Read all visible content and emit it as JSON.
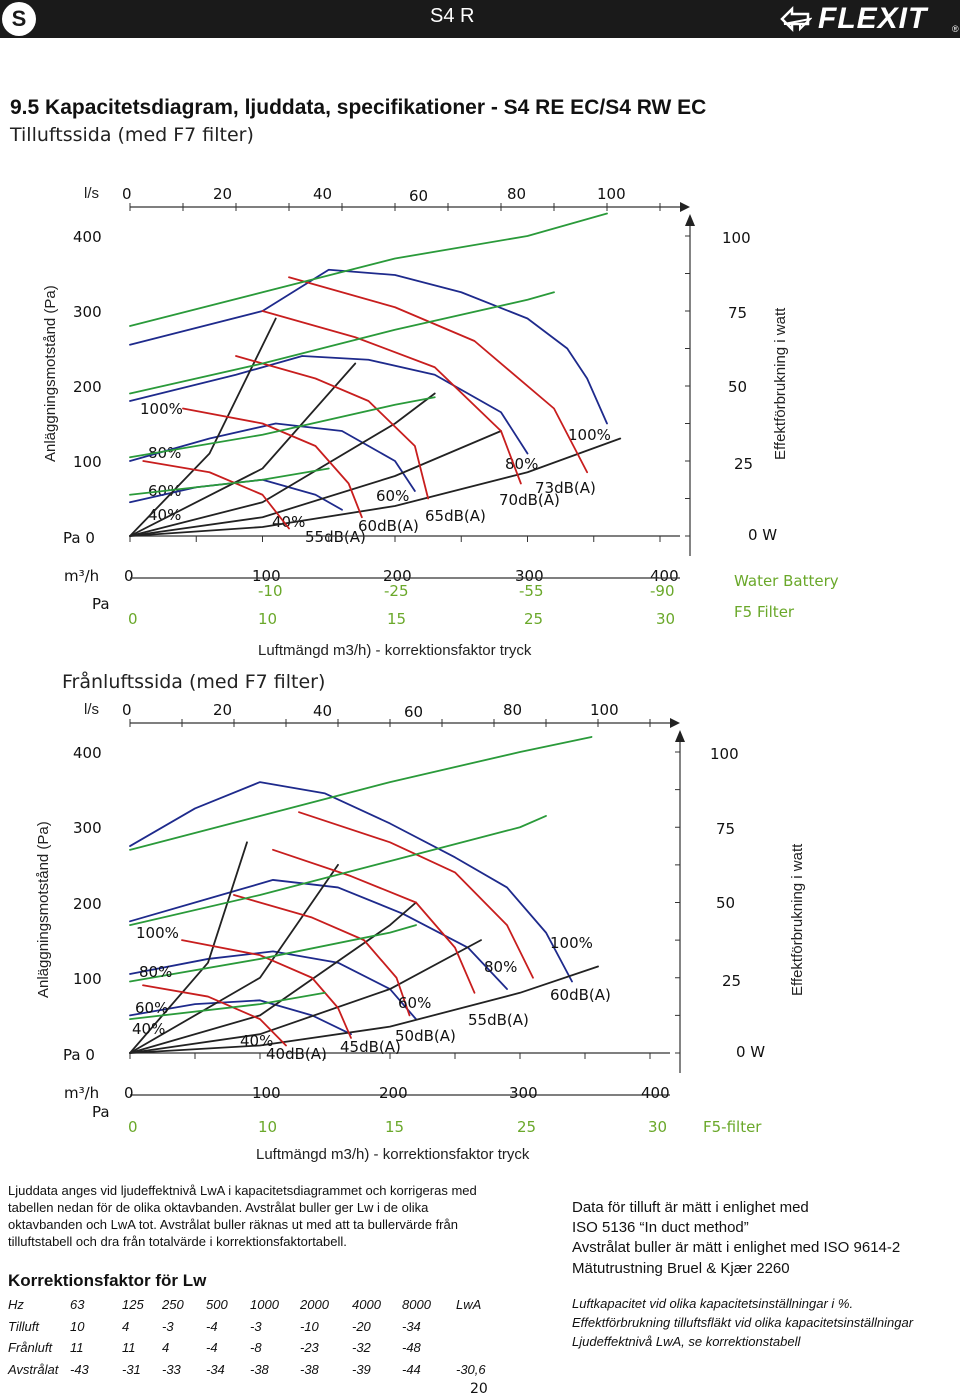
{
  "header": {
    "lang_badge": "S",
    "doc_code": "S4 R",
    "brand": "FLEXIT",
    "reg": "®",
    "icon": "flexit-arrow-logo-icon"
  },
  "title": "9.5  Kapacitetsdiagram, ljuddata, specifikationer - S4 RE EC/S4 RW EC",
  "supply": {
    "subtitle": "Tilluftssida (med F7 filter)",
    "ls_label": "l/s",
    "ls_ticks": [
      "0",
      "20",
      "40",
      "60",
      "80",
      "100"
    ],
    "pa_ticks_left": [
      "400",
      "300",
      "200",
      "100",
      "Pa  0"
    ],
    "y_axis_label": "Anläggningsmotstånd (Pa)",
    "w_ticks": [
      "100",
      "75",
      "50",
      "25",
      "0   W"
    ],
    "w_axis_label": "Effektförbrukning i watt",
    "m3h_label": "m³/h",
    "m3h_ticks": [
      "0",
      "100",
      "200",
      "300",
      "400"
    ],
    "water_corr": [
      "-10",
      "-25",
      "-55",
      "-90"
    ],
    "pa_label": "Pa",
    "f5_ticks": [
      "0",
      "10",
      "15",
      "25",
      "30"
    ],
    "legend_water": "Water Battery",
    "legend_f5": "F5 Filter",
    "x_caption": "Luftmängd m3/h) - korrektionsfaktor tryck",
    "fan_labels_left": [
      "100%",
      "80%",
      "60%",
      "40%"
    ],
    "fan_labels_mid": [
      "60%",
      "40%"
    ],
    "fan_labels_right": [
      "100%",
      "80%"
    ],
    "db_labels": [
      "73dB(A)",
      "70dB(A)",
      "65dB(A)",
      "60dB(A)",
      "55dB(A)"
    ]
  },
  "extract": {
    "subtitle": "Frånluftssida (med F7 filter)",
    "ls_label": "l/s",
    "ls_ticks": [
      "0",
      "20",
      "40",
      "60",
      "80",
      "100"
    ],
    "pa_ticks_left": [
      "400",
      "300",
      "200",
      "100",
      "Pa  0"
    ],
    "y_axis_label": "Anläggningsmotstånd (Pa)",
    "w_ticks": [
      "100",
      "75",
      "50",
      "25",
      "0   W"
    ],
    "w_axis_label": "Effektförbrukning i watt",
    "m3h_label": "m³/h",
    "m3h_ticks": [
      "0",
      "100",
      "200",
      "300",
      "400"
    ],
    "pa_label": "Pa",
    "f5_ticks": [
      "0",
      "10",
      "15",
      "25",
      "30"
    ],
    "legend_f5": "F5-filter",
    "x_caption": "Luftmängd m3/h) - korrektionsfaktor tryck",
    "fan_labels_left": [
      "100%",
      "80%",
      "60%",
      "40%"
    ],
    "fan_labels_mid": [
      "60%",
      "40%"
    ],
    "fan_labels_right": [
      "100%",
      "80%"
    ],
    "db_labels": [
      "60dB(A)",
      "55dB(A)",
      "50dB(A)",
      "45dB(A)",
      "40dB(A)"
    ]
  },
  "sound_text": "Ljuddata anges vid ljudeffektnivå LwA i kapacitetsdiagrammet och korrigeras med tabellen nedan för de olika oktavbanden. Avstrålat buller ger Lw i de olika oktavbanden och LwA tot. Avstrålat buller räknas ut med att ta bullervärde från tilluftstabell och dra från totalvärde i korrektionsfaktortabell.",
  "correction": {
    "title": "Korrektionsfaktor för Lw",
    "rows": [
      [
        "Hz",
        "63",
        "125",
        "250",
        "500",
        "1000",
        "2000",
        "4000",
        "8000",
        "LwA"
      ],
      [
        "Tilluft",
        "10",
        "4",
        "-3",
        "-4",
        "-3",
        "-10",
        "-20",
        "-34",
        ""
      ],
      [
        "Frånluft",
        "11",
        "11",
        "4",
        "-4",
        "-8",
        "-23",
        "-32",
        "-48",
        ""
      ],
      [
        "Avstrålat",
        "-43",
        "-31",
        "-33",
        "-34",
        "-38",
        "-38",
        "-39",
        "-44",
        "-30,6"
      ]
    ]
  },
  "measurement": {
    "line1": "Data för tilluft är mätt i enlighet med",
    "line2": "ISO 5136 “In duct method”",
    "line3": "Avstrålat buller är mätt i enlighet med ISO 9614-2",
    "line4": "Mätutrustning Bruel & Kjær 2260"
  },
  "notes": {
    "line1": "Luftkapacitet vid olika kapacitetsinställningar i %.",
    "line2": "Effektförbrukning tilluftsfläkt vid olika kapacitetsinställningar",
    "line3": "Ljudeffektnivå LwA, se korrektionstabell"
  },
  "page_number": "20",
  "chart_data": [
    {
      "type": "line",
      "title": "Tilluftssida (med F7 filter)",
      "xlabel": "Luftmängd m3/h",
      "ylabel": "Anläggningsmotstånd (Pa)",
      "xlim": [
        0,
        400
      ],
      "ylim": [
        0,
        400
      ],
      "y2label": "Effektförbrukning i watt",
      "y2lim": [
        0,
        100
      ],
      "series": [
        {
          "name": "Fan 100%",
          "color": "#1e2a8c",
          "x": [
            0,
            100,
            150,
            200,
            250,
            300,
            330,
            345,
            360
          ],
          "y": [
            255,
            300,
            355,
            348,
            325,
            290,
            250,
            210,
            150
          ]
        },
        {
          "name": "Fan 80%",
          "color": "#1e2a8c",
          "x": [
            0,
            80,
            130,
            180,
            230,
            280,
            300
          ],
          "y": [
            180,
            215,
            240,
            235,
            215,
            165,
            110
          ]
        },
        {
          "name": "Fan 60%",
          "color": "#1e2a8c",
          "x": [
            0,
            60,
            110,
            160,
            200,
            215
          ],
          "y": [
            100,
            130,
            150,
            140,
            100,
            60
          ]
        },
        {
          "name": "Fan 40%",
          "color": "#1e2a8c",
          "x": [
            0,
            50,
            100,
            140,
            160
          ],
          "y": [
            45,
            65,
            75,
            55,
            35
          ]
        },
        {
          "name": "Duct curve 1",
          "color": "#222222",
          "x": [
            0,
            100,
            200,
            300,
            370
          ],
          "y": [
            0,
            12,
            40,
            85,
            130
          ]
        },
        {
          "name": "Duct curve 2",
          "color": "#222222",
          "x": [
            0,
            100,
            200,
            280
          ],
          "y": [
            0,
            25,
            80,
            140
          ]
        },
        {
          "name": "Duct curve 3",
          "color": "#222222",
          "x": [
            0,
            100,
            200,
            230
          ],
          "y": [
            0,
            45,
            150,
            190
          ]
        },
        {
          "name": "Duct curve 4",
          "color": "#222222",
          "x": [
            0,
            100,
            170
          ],
          "y": [
            0,
            90,
            230
          ]
        },
        {
          "name": "Duct curve 5",
          "color": "#222222",
          "x": [
            0,
            60,
            110
          ],
          "y": [
            0,
            110,
            290
          ]
        },
        {
          "name": "73dB(A)",
          "color": "#c81e1e",
          "x": [
            120,
            200,
            260,
            320,
            345
          ],
          "y": [
            345,
            305,
            260,
            170,
            85
          ]
        },
        {
          "name": "70dB(A)",
          "color": "#c81e1e",
          "x": [
            100,
            170,
            230,
            280,
            295
          ],
          "y": [
            300,
            265,
            225,
            140,
            70
          ]
        },
        {
          "name": "65dB(A)",
          "color": "#c81e1e",
          "x": [
            80,
            140,
            180,
            215,
            225
          ],
          "y": [
            240,
            210,
            180,
            120,
            50
          ]
        },
        {
          "name": "60dB(A)",
          "color": "#c81e1e",
          "x": [
            40,
            100,
            140,
            165,
            175
          ],
          "y": [
            170,
            150,
            120,
            70,
            25
          ]
        },
        {
          "name": "55dB(A)",
          "color": "#c81e1e",
          "x": [
            10,
            60,
            100,
            120
          ],
          "y": [
            100,
            85,
            55,
            10
          ]
        },
        {
          "name": "Power 100%",
          "color": "#2a9a3a",
          "x": [
            0,
            100,
            200,
            300,
            360
          ],
          "y": [
            280,
            325,
            370,
            400,
            430
          ]
        },
        {
          "name": "Power 80%",
          "color": "#2a9a3a",
          "x": [
            0,
            100,
            200,
            300,
            320
          ],
          "y": [
            190,
            230,
            275,
            315,
            325
          ]
        },
        {
          "name": "Power 60%",
          "color": "#2a9a3a",
          "x": [
            0,
            100,
            200,
            230
          ],
          "y": [
            105,
            135,
            175,
            185
          ]
        },
        {
          "name": "Power 40%",
          "color": "#2a9a3a",
          "x": [
            0,
            100,
            150
          ],
          "y": [
            55,
            75,
            90
          ]
        }
      ]
    },
    {
      "type": "line",
      "title": "Frånluftssida (med F7 filter)",
      "xlabel": "Luftmängd m3/h",
      "ylabel": "Anläggningsmotstånd (Pa)",
      "xlim": [
        0,
        400
      ],
      "ylim": [
        0,
        400
      ],
      "y2label": "Effektförbrukning i watt",
      "y2lim": [
        0,
        100
      ],
      "series": [
        {
          "name": "Fan 100%",
          "color": "#1e2a8c",
          "x": [
            0,
            50,
            100,
            150,
            200,
            250,
            290,
            320,
            340
          ],
          "y": [
            275,
            325,
            360,
            345,
            305,
            260,
            220,
            160,
            95
          ]
        },
        {
          "name": "Fan 80%",
          "color": "#1e2a8c",
          "x": [
            0,
            60,
            110,
            160,
            210,
            260,
            290
          ],
          "y": [
            175,
            205,
            230,
            220,
            185,
            140,
            85
          ]
        },
        {
          "name": "Fan 60%",
          "color": "#1e2a8c",
          "x": [
            0,
            60,
            110,
            160,
            200,
            220
          ],
          "y": [
            105,
            125,
            135,
            120,
            85,
            45
          ]
        },
        {
          "name": "Fan 40%",
          "color": "#1e2a8c",
          "x": [
            0,
            50,
            100,
            140,
            170
          ],
          "y": [
            50,
            65,
            70,
            50,
            25
          ]
        },
        {
          "name": "Duct curve 1",
          "color": "#222222",
          "x": [
            0,
            100,
            200,
            300,
            360
          ],
          "y": [
            0,
            10,
            35,
            80,
            115
          ]
        },
        {
          "name": "Duct curve 2",
          "color": "#222222",
          "x": [
            0,
            100,
            200,
            270
          ],
          "y": [
            0,
            25,
            85,
            150
          ]
        },
        {
          "name": "Duct curve 3",
          "color": "#222222",
          "x": [
            0,
            100,
            200,
            220
          ],
          "y": [
            0,
            50,
            170,
            200
          ]
        },
        {
          "name": "Duct curve 4",
          "color": "#222222",
          "x": [
            0,
            100,
            160
          ],
          "y": [
            0,
            100,
            250
          ]
        },
        {
          "name": "Duct curve 5",
          "color": "#222222",
          "x": [
            0,
            60,
            90
          ],
          "y": [
            0,
            120,
            280
          ]
        },
        {
          "name": "60dB(A)",
          "color": "#c81e1e",
          "x": [
            130,
            200,
            250,
            290,
            310
          ],
          "y": [
            320,
            280,
            240,
            170,
            100
          ]
        },
        {
          "name": "55dB(A)",
          "color": "#c81e1e",
          "x": [
            110,
            170,
            220,
            250,
            265
          ],
          "y": [
            270,
            235,
            200,
            140,
            80
          ]
        },
        {
          "name": "50dB(A)",
          "color": "#c81e1e",
          "x": [
            80,
            140,
            180,
            205,
            215
          ],
          "y": [
            210,
            180,
            150,
            100,
            50
          ]
        },
        {
          "name": "45dB(A)",
          "color": "#c81e1e",
          "x": [
            40,
            100,
            140,
            160,
            170
          ],
          "y": [
            150,
            130,
            100,
            60,
            20
          ]
        },
        {
          "name": "40dB(A)",
          "color": "#c81e1e",
          "x": [
            10,
            60,
            100,
            120
          ],
          "y": [
            90,
            75,
            45,
            10
          ]
        },
        {
          "name": "Power 100%",
          "color": "#2a9a3a",
          "x": [
            0,
            100,
            200,
            300,
            355
          ],
          "y": [
            270,
            315,
            360,
            400,
            420
          ]
        },
        {
          "name": "Power 80%",
          "color": "#2a9a3a",
          "x": [
            0,
            100,
            200,
            300,
            320
          ],
          "y": [
            170,
            210,
            255,
            300,
            315
          ]
        },
        {
          "name": "Power 60%",
          "color": "#2a9a3a",
          "x": [
            0,
            100,
            200,
            220
          ],
          "y": [
            95,
            125,
            160,
            170
          ]
        },
        {
          "name": "Power 40%",
          "color": "#2a9a3a",
          "x": [
            0,
            100,
            150
          ],
          "y": [
            45,
            65,
            80
          ]
        }
      ]
    }
  ]
}
